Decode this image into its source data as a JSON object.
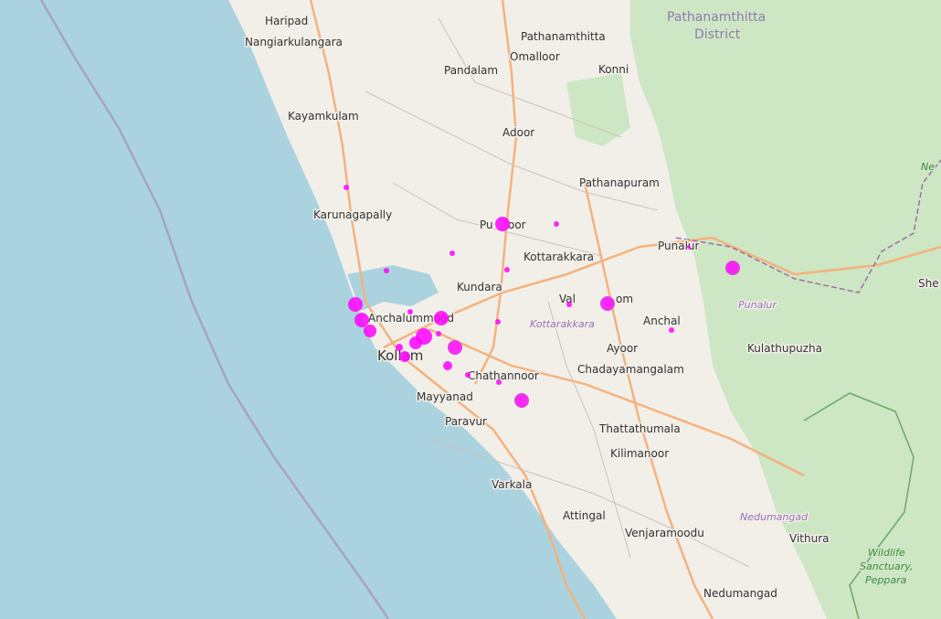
{
  "map": {
    "colors": {
      "sea": "#aad3df",
      "land": "#f2efe9",
      "forest": "#cde6c3",
      "marker": "#ff00ff",
      "road": "#f4b27e",
      "minor_road": "#c9c3bb",
      "boundary": "#9d6fa6"
    },
    "labels": {
      "haripad": "Haripad",
      "nangiarkulangara": "Nangiarkulangara",
      "pathanamthitta": "Pathanamthitta",
      "pathanamthitta_district_1": "Pathanamthitta",
      "pathanamthitta_district_2": "District",
      "omalloor": "Omalloor",
      "pandalam": "Pandalam",
      "konni": "Konni",
      "kayamkulam": "Kayamkulam",
      "adoor": "Adoor",
      "pathanapuram": "Pathanapuram",
      "karunagapally": "Karunagapally",
      "punalur_town": "Punalur",
      "punalur_region": "Punalur",
      "kottarakkara_town": "Kottarakkara",
      "kottarakkara_region": "Kottarakkara",
      "kundara": "Kundara",
      "anchalummood": "Anchalummood",
      "kollam": "Kollam",
      "anchal": "Anchal",
      "ayoor": "Ayoor",
      "chadayamangalam": "Chadayamangalam",
      "kulathupuzha": "Kulathupuzha",
      "chathannoor": "Chathannoor",
      "mayyanad": "Mayyanad",
      "paravur": "Paravur",
      "thattathumala": "Thattathumala",
      "kilimanoor": "Kilimanoor",
      "varkala": "Varkala",
      "attingal": "Attingal",
      "venjaramoodu": "Venjaramoodu",
      "nedumangad_region": "Nedumangad",
      "vithura": "Vithura",
      "nedumangad_town": "Nedumangad",
      "wildlife_1": "Wildlife",
      "wildlife_2": "Sanctuary,",
      "wildlife_3": "Peppara",
      "shendurney": "She",
      "edge_label": "Ne",
      "punalur_partial": "Pu",
      "valakom_partial": "Val",
      "valakom_end": "om"
    }
  }
}
